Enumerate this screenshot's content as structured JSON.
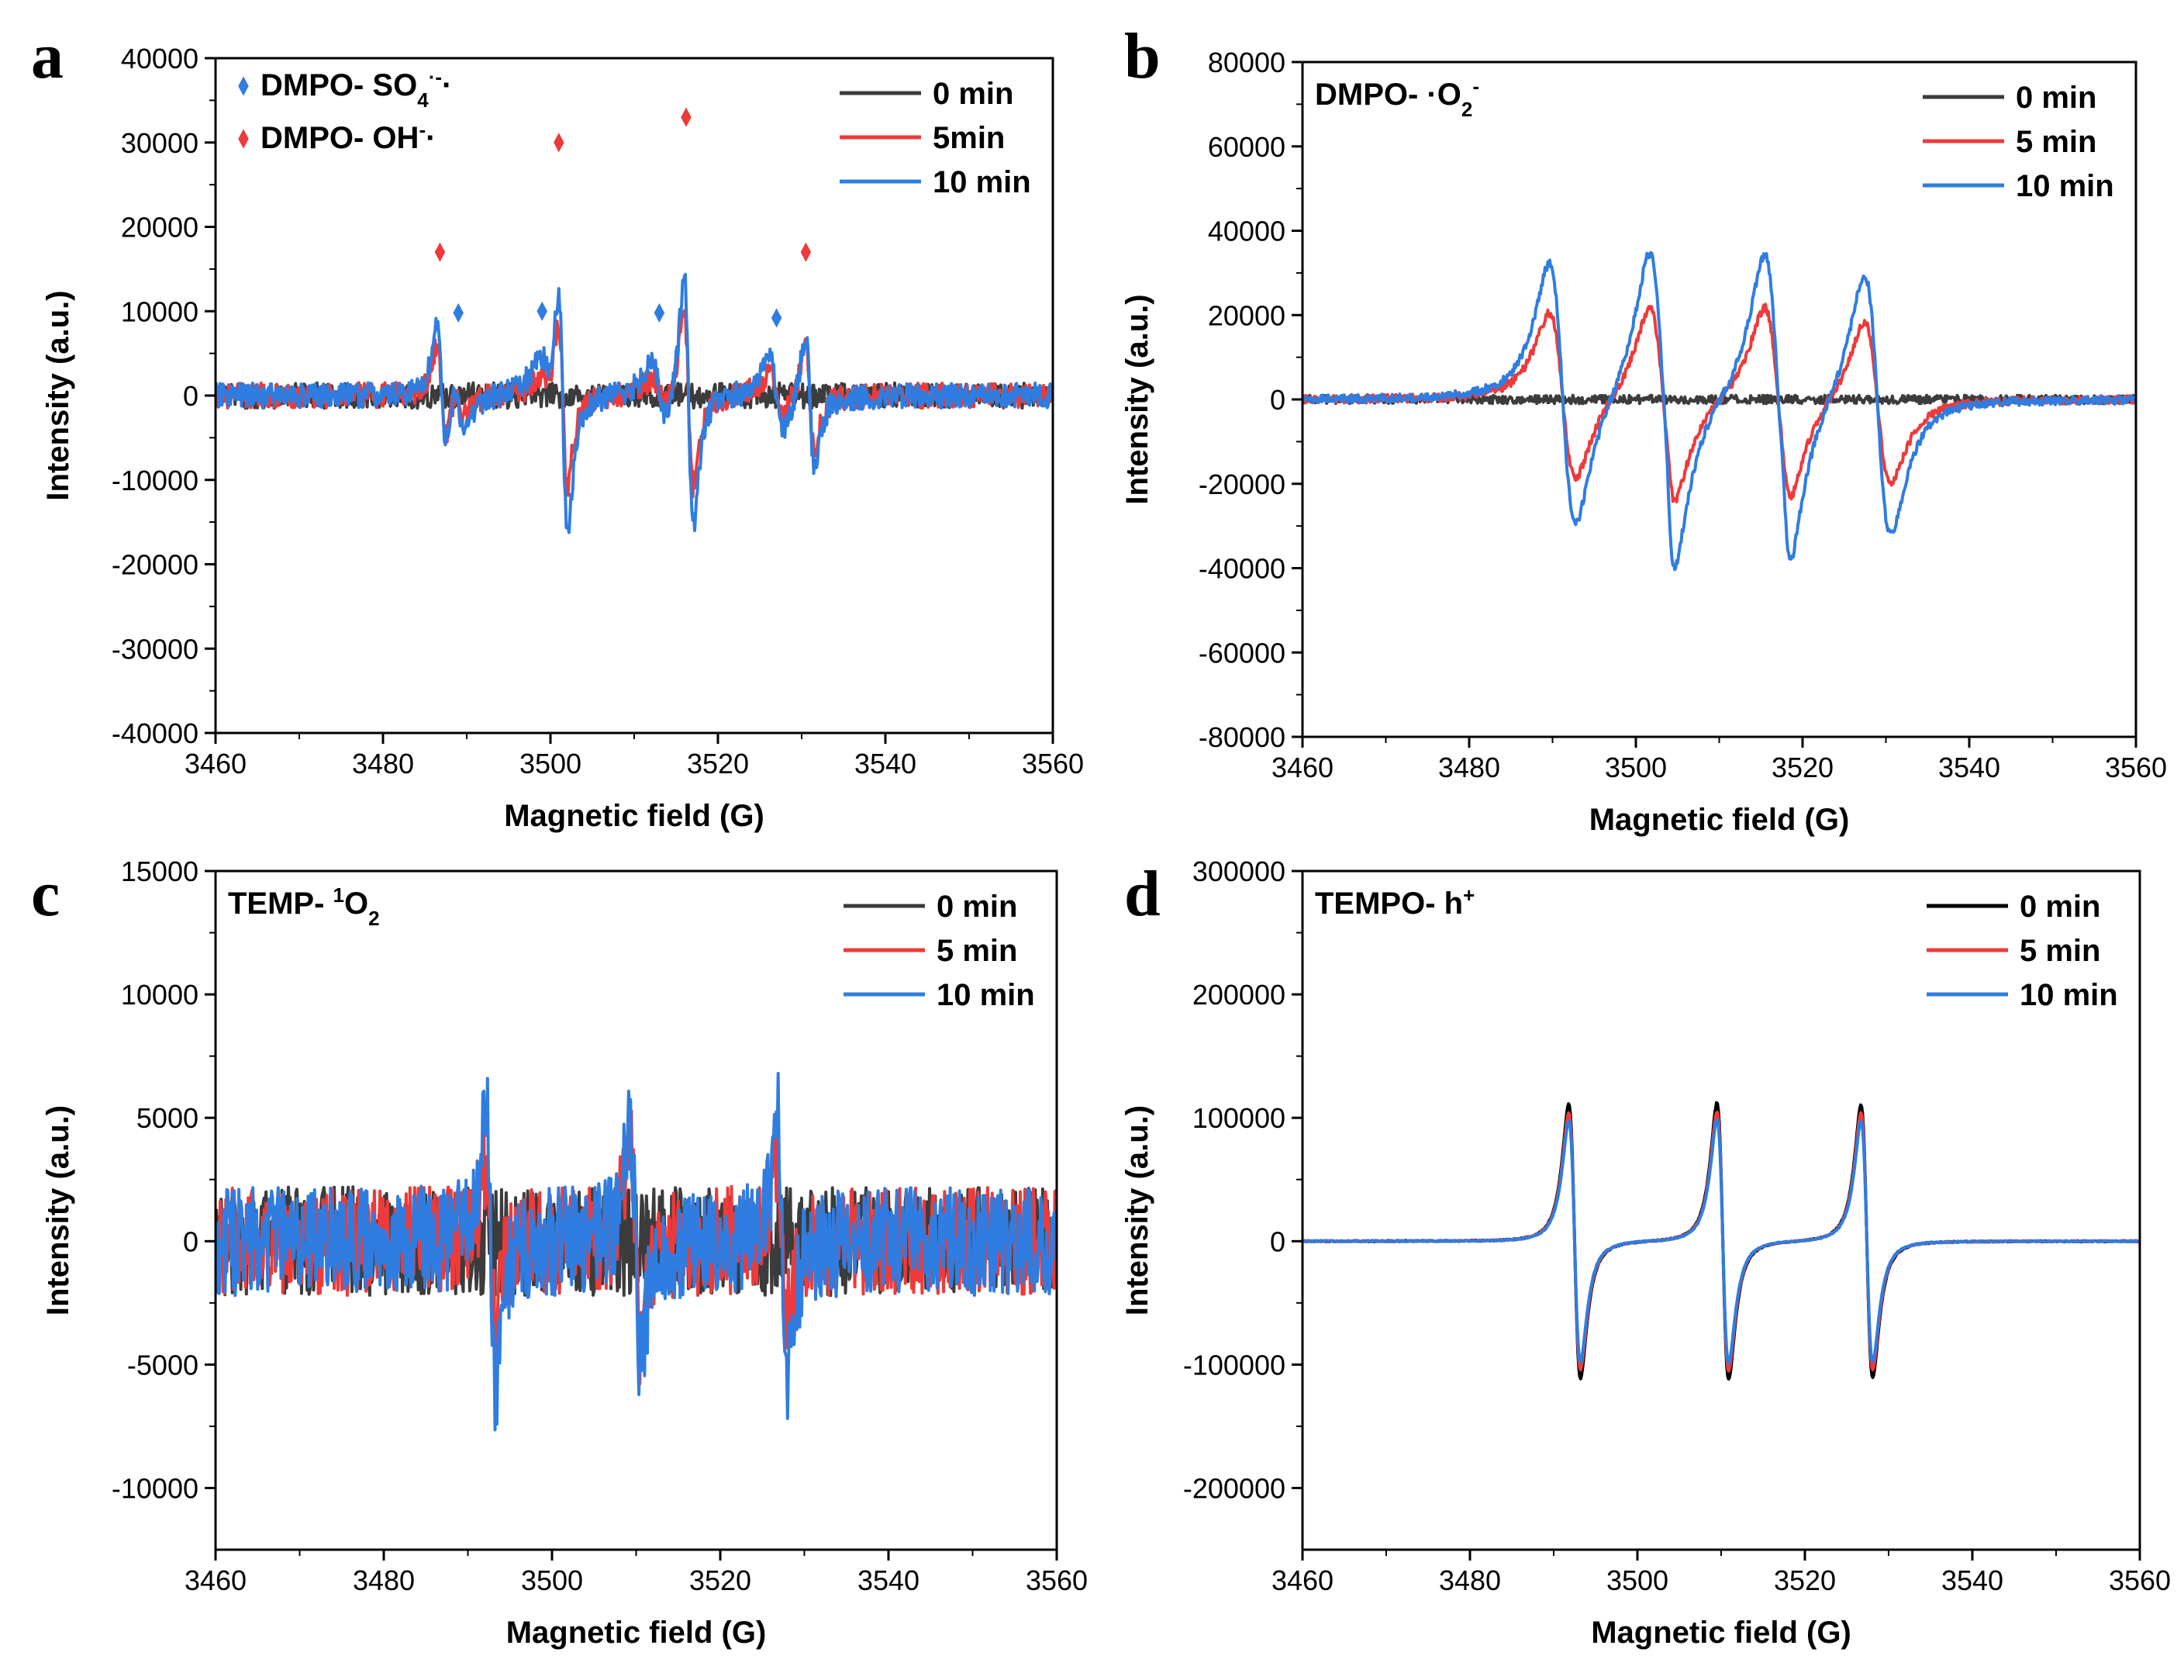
{
  "colors": {
    "c0": "#3c3c3c",
    "c5": "#ee3a3a",
    "c10": "#2f7de0",
    "c0_black": "#000000",
    "so4_marker": "#2f7de0",
    "oh_marker": "#ee3a3a"
  },
  "chart_data": [
    {
      "panel": "a",
      "type": "line",
      "xlabel": "Magnetic field (G)",
      "ylabel": "Intensity (a.u.)",
      "xlim": [
        3460,
        3560
      ],
      "ylim": [
        -40000,
        40000
      ],
      "xticks": [
        "3460",
        "3480",
        "3500",
        "3520",
        "3540",
        "3560"
      ],
      "yticks": [
        "-40000",
        "-30000",
        "-20000",
        "-10000",
        "0",
        "10000",
        "20000",
        "30000",
        "40000"
      ],
      "legend_position": "top-right",
      "series": [
        {
          "name": "0 min",
          "color": "#3c3c3c",
          "noise": 1500,
          "peaks": []
        },
        {
          "name": "5min",
          "color": "#ee3a3a",
          "noise": 1500,
          "peaks": [
            [
              3487,
              11000,
              0.55
            ],
            [
              3489,
              3500,
              0.7
            ],
            [
              3499.5,
              3000,
              0.9
            ],
            [
              3501.5,
              19000,
              0.55
            ],
            [
              3513,
              3500,
              0.9
            ],
            [
              3516.5,
              20000,
              0.55
            ],
            [
              3527,
              4500,
              0.9
            ],
            [
              3531,
              12000,
              0.55
            ]
          ]
        },
        {
          "name": "10 min",
          "color": "#2f7de0",
          "noise": 1500,
          "peaks": [
            [
              3487,
              15000,
              0.55
            ],
            [
              3489,
              7000,
              0.7
            ],
            [
              3499.5,
              6500,
              0.9
            ],
            [
              3501.5,
              29000,
              0.55
            ],
            [
              3513,
              7500,
              0.9
            ],
            [
              3516.5,
              29000,
              0.55
            ],
            [
              3527,
              8000,
              0.9
            ],
            [
              3531,
              15500,
              0.55
            ]
          ]
        }
      ],
      "markers": [
        {
          "x": 3486.8,
          "y": 17000,
          "type": "OH"
        },
        {
          "x": 3501.0,
          "y": 30000,
          "type": "OH"
        },
        {
          "x": 3516.2,
          "y": 33000,
          "type": "OH"
        },
        {
          "x": 3530.5,
          "y": 17000,
          "type": "OH"
        },
        {
          "x": 3489.0,
          "y": 9800,
          "type": "SO4"
        },
        {
          "x": 3499.0,
          "y": 10000,
          "type": "SO4"
        },
        {
          "x": 3513.0,
          "y": 9800,
          "type": "SO4"
        },
        {
          "x": 3527.0,
          "y": 9200,
          "type": "SO4"
        }
      ],
      "annotation_lines": [
        {
          "marker": "SO4",
          "text": "DMPO- SO",
          "sub": "4",
          "sup": "·-",
          "tail": "·"
        },
        {
          "marker": "OH",
          "text": "DMPO- OH",
          "sub": "",
          "sup": "-",
          "tail": "·"
        }
      ]
    },
    {
      "panel": "b",
      "type": "line",
      "xlabel": "Magnetic field (G)",
      "ylabel": "Intensity (a.u.)",
      "xlim": [
        3460,
        3560
      ],
      "ylim": [
        -80000,
        80000
      ],
      "xticks": [
        "3460",
        "3480",
        "3500",
        "3520",
        "3540",
        "3560"
      ],
      "yticks": [
        "-80000",
        "-60000",
        "-40000",
        "-20000",
        "0",
        "20000",
        "40000",
        "60000",
        "80000"
      ],
      "legend_position": "top-right",
      "title_annotation": {
        "text": "DMPO- ·O",
        "sub": "2",
        "sup": "-"
      },
      "series": [
        {
          "name": "0 min",
          "color": "#3c3c3c",
          "noise": 1000,
          "peaks": []
        },
        {
          "name": "5 min",
          "color": "#ee3a3a",
          "noise": 1000,
          "peaks": [
            [
              3491.2,
              38000,
              1.6
            ],
            [
              3503.2,
              42000,
              1.6
            ],
            [
              3517,
              42000,
              1.6
            ],
            [
              3529,
              37000,
              1.6
            ],
            [
              3504,
              5000,
              0.5
            ],
            [
              3518,
              4000,
              0.5
            ]
          ]
        },
        {
          "name": "10 min",
          "color": "#2f7de0",
          "noise": 1000,
          "peaks": [
            [
              3491.2,
              60000,
              1.6
            ],
            [
              3503.2,
              67000,
              1.6
            ],
            [
              3517,
              66000,
              1.6
            ],
            [
              3529,
              60000,
              1.6
            ],
            [
              3504,
              12000,
              0.5
            ],
            [
              3518,
              10000,
              0.5
            ]
          ]
        }
      ]
    },
    {
      "panel": "c",
      "type": "line",
      "xlabel": "Magnetic field (G)",
      "ylabel": "Intensity (a.u.)",
      "xlim": [
        3460,
        3560
      ],
      "ylim": [
        -12500,
        15000
      ],
      "xticks": [
        "3460",
        "3480",
        "3500",
        "3520",
        "3540",
        "3560"
      ],
      "yticks": [
        "-10000",
        "-5000",
        "0",
        "5000",
        "10000",
        "15000"
      ],
      "legend_position": "top-right",
      "title_annotation": {
        "text": "TEMP- ",
        "pre_sup": "1",
        "main": "O",
        "sub": "2"
      },
      "series": [
        {
          "name": "0 min",
          "color": "#3c3c3c",
          "noise": 2200,
          "peaks": []
        },
        {
          "name": "5 min",
          "color": "#ee3a3a",
          "noise": 2200,
          "peaks": [
            [
              3492.7,
              6000,
              0.6
            ],
            [
              3509.9,
              7500,
              0.6
            ],
            [
              3527.4,
              6500,
              0.6
            ]
          ]
        },
        {
          "name": "10 min",
          "color": "#2f7de0",
          "noise": 2200,
          "peaks": [
            [
              3492.7,
              10800,
              0.6
            ],
            [
              3509.9,
              9600,
              0.6
            ],
            [
              3527.4,
              9700,
              0.6
            ]
          ]
        }
      ]
    },
    {
      "panel": "d",
      "type": "line",
      "xlabel": "Magnetic field (G)",
      "ylabel": "Intensity (a.u.)",
      "xlim": [
        3460,
        3560
      ],
      "ylim": [
        -250000,
        300000
      ],
      "xticks": [
        "3460",
        "3480",
        "3500",
        "3520",
        "3540",
        "3560"
      ],
      "yticks": [
        "-200000",
        "-100000",
        "0",
        "100000",
        "200000",
        "300000"
      ],
      "legend_position": "top-right",
      "title_annotation": {
        "text": "TEMPO- h",
        "sup": "+"
      },
      "series": [
        {
          "name": "0 min",
          "color": "#000000",
          "noise": 500,
          "peaks": [
            [
              3492.5,
              214000,
              0.7
            ],
            [
              3510.2,
              216000,
              0.7
            ],
            [
              3527.4,
              213000,
              0.7
            ]
          ]
        },
        {
          "name": "5 min",
          "color": "#ee3a3a",
          "noise": 500,
          "peaks": [
            [
              3492.5,
              200000,
              0.7
            ],
            [
              3510.2,
              202000,
              0.7
            ],
            [
              3527.4,
              200000,
              0.7
            ]
          ]
        },
        {
          "name": "10 min",
          "color": "#2f7de0",
          "noise": 500,
          "peaks": [
            [
              3492.5,
              188000,
              0.7
            ],
            [
              3510.2,
              190000,
              0.7
            ],
            [
              3527.4,
              188000,
              0.7
            ]
          ]
        }
      ]
    }
  ]
}
